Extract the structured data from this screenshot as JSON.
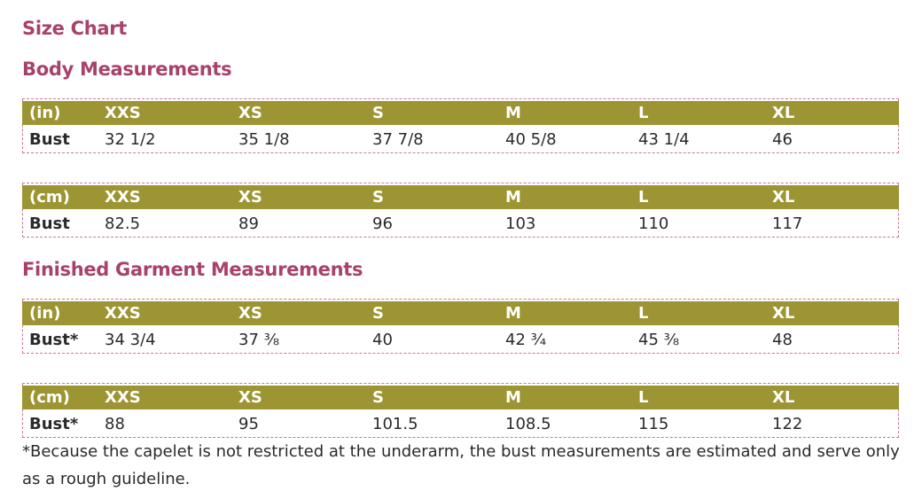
{
  "title": "Size Chart",
  "body_heading": "Body Measurements",
  "garment_heading": "Finished Garment Measurements",
  "tables": [
    {
      "header": [
        "(in)",
        "XXS",
        "XS",
        "S",
        "M",
        "L",
        "XL"
      ],
      "row": [
        "Bust",
        "32 1/2",
        "35 1/8",
        "37 7/8",
        "40 5/8",
        "43 1/4",
        "46"
      ]
    },
    {
      "header": [
        "(cm)",
        "XXS",
        "XS",
        "S",
        "M",
        "L",
        "XL"
      ],
      "row": [
        "Bust",
        "82.5",
        "89",
        "96",
        "103",
        "110",
        "117"
      ]
    },
    {
      "header": [
        "(in)",
        "XXS",
        "XS",
        "S",
        "M",
        "L",
        "XL"
      ],
      "row": [
        "Bust*",
        "34 3/4",
        "37 ⅜",
        "40",
        "42 ¾",
        "45 ⅜",
        "48"
      ]
    },
    {
      "header": [
        "(cm)",
        "XXS",
        "XS",
        "S",
        "M",
        "L",
        "XL"
      ],
      "row": [
        "Bust*",
        "88",
        "95",
        "101.5",
        "108.5",
        "115",
        "122"
      ]
    }
  ],
  "footnote": "*Because the capelet is not restricted at the underarm, the bust measurements are estimated and serve only as a rough guideline.",
  "colors": {
    "heading": "#a8426a",
    "header_band": "#9d9533",
    "dashed_border": "#c9799a"
  }
}
